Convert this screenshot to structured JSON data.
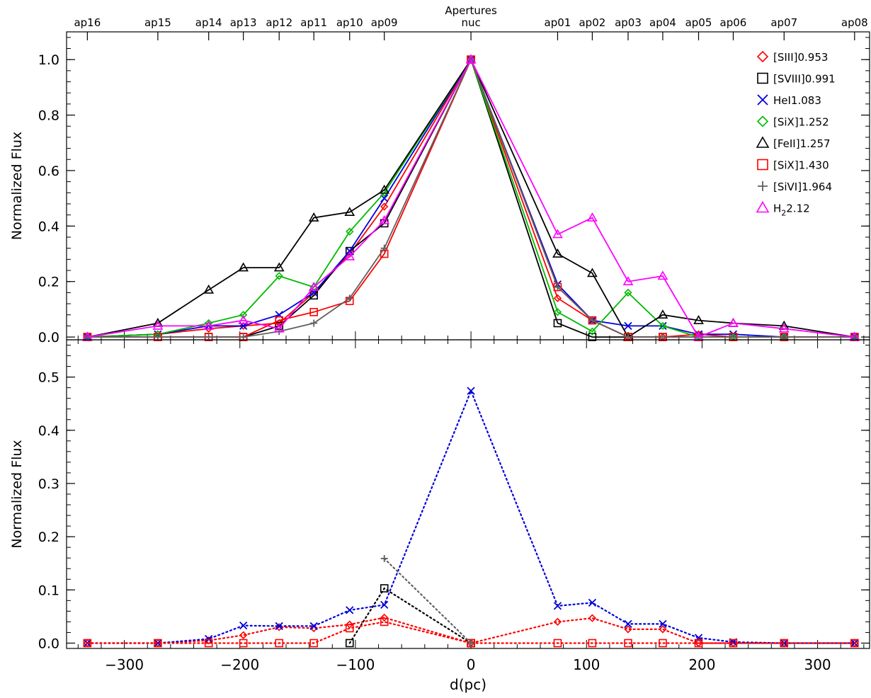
{
  "chart_data": [
    {
      "type": "line",
      "panel": "top",
      "top_axis": {
        "label_line1": "Apertures",
        "ticks": [
          {
            "x": -332,
            "label": "ap16"
          },
          {
            "x": -271,
            "label": "ap15"
          },
          {
            "x": -227,
            "label": "ap14"
          },
          {
            "x": -197,
            "label": "ap13"
          },
          {
            "x": -166,
            "label": "ap12"
          },
          {
            "x": -136,
            "label": "ap11"
          },
          {
            "x": -105,
            "label": "ap10"
          },
          {
            "x": -75,
            "label": "ap09"
          },
          {
            "x": 0,
            "label": "nuc"
          },
          {
            "x": 75,
            "label": "ap01"
          },
          {
            "x": 105,
            "label": "ap02"
          },
          {
            "x": 136,
            "label": "ap03"
          },
          {
            "x": 166,
            "label": "ap04"
          },
          {
            "x": 197,
            "label": "ap05"
          },
          {
            "x": 227,
            "label": "ap06"
          },
          {
            "x": 271,
            "label": "ap07"
          },
          {
            "x": 332,
            "label": "ap08"
          }
        ]
      },
      "ylabel": "Normalized Flux",
      "xlim": [
        -350,
        345
      ],
      "ylim": [
        -0.01,
        1.1
      ],
      "yticks": [
        0.0,
        0.2,
        0.4,
        0.6,
        0.8,
        1.0
      ],
      "ytick_labels": [
        "0.0",
        "0.2",
        "0.4",
        "0.6",
        "0.8",
        "1.0"
      ],
      "legend_position": "top-right",
      "x": [
        -332,
        -271,
        -227,
        -197,
        -166,
        -136,
        -105,
        -75,
        0,
        75,
        105,
        136,
        166,
        197,
        227,
        271,
        332
      ],
      "series": [
        {
          "name": "[SIII]0.953",
          "color": "#ff0000",
          "marker": "diamond-small",
          "values": [
            0.0,
            0.01,
            0.03,
            0.04,
            0.05,
            0.16,
            0.3,
            0.47,
            1.0,
            0.14,
            0.06,
            0.0,
            0.0,
            0.01,
            0.0,
            0.0,
            0.0
          ]
        },
        {
          "name": "[SVIII]0.991",
          "color": "#000000",
          "marker": "square",
          "values": [
            0.0,
            0.0,
            0.0,
            0.0,
            0.04,
            0.15,
            0.31,
            0.41,
            1.0,
            0.05,
            0.0,
            0.0,
            0.0,
            0.0,
            0.0,
            0.0,
            0.0
          ]
        },
        {
          "name": "HeI1.083",
          "color": "#0000dd",
          "marker": "x",
          "values": [
            0.0,
            0.01,
            0.04,
            0.04,
            0.08,
            0.16,
            0.31,
            0.5,
            1.0,
            0.19,
            0.06,
            0.04,
            0.04,
            0.01,
            0.01,
            0.0,
            0.0
          ]
        },
        {
          "name": "[SiX]1.252",
          "color": "#00bb00",
          "marker": "diamond-small",
          "values": [
            0.0,
            0.01,
            0.05,
            0.08,
            0.22,
            0.18,
            0.38,
            0.52,
            1.0,
            0.09,
            0.02,
            0.16,
            0.04,
            0.0,
            0.0,
            0.0,
            0.0
          ]
        },
        {
          "name": "[FeII]1.257",
          "color": "#000000",
          "marker": "triangle",
          "values": [
            0.0,
            0.05,
            0.17,
            0.25,
            0.25,
            0.43,
            0.45,
            0.53,
            1.0,
            0.3,
            0.23,
            0.0,
            0.08,
            0.06,
            0.05,
            0.04,
            0.0
          ]
        },
        {
          "name": "[SiX]1.430",
          "color": "#ff0000",
          "marker": "square",
          "values": [
            0.0,
            0.0,
            0.0,
            0.0,
            0.06,
            0.09,
            0.13,
            0.3,
            1.0,
            0.18,
            0.06,
            0.0,
            0.0,
            0.0,
            0.0,
            0.0,
            0.0
          ]
        },
        {
          "name": "[SiVI]1.964",
          "color": "#606060",
          "marker": "plus",
          "values": [
            0.0,
            0.0,
            0.0,
            0.0,
            0.02,
            0.05,
            0.14,
            0.32,
            1.0,
            0.18,
            0.06,
            0.0,
            0.0,
            0.0,
            0.0,
            0.0,
            0.0
          ]
        },
        {
          "name": "H2.12",
          "name_parts": [
            "H",
            "2",
            "2.12"
          ],
          "color": "#ff00ff",
          "marker": "triangle",
          "values": [
            0.0,
            0.04,
            0.04,
            0.06,
            0.03,
            0.18,
            0.29,
            0.42,
            1.0,
            0.37,
            0.43,
            0.2,
            0.22,
            0.0,
            0.05,
            0.03,
            0.0
          ]
        }
      ]
    },
    {
      "type": "line",
      "panel": "bottom",
      "xlabel": "d(pc)",
      "ylabel": "Normalized Flux",
      "xlim": [
        -350,
        345
      ],
      "ylim": [
        -0.01,
        0.57
      ],
      "xticks": [
        -300,
        -200,
        -100,
        0,
        100,
        200,
        300
      ],
      "xtick_labels": [
        "−300",
        "−200",
        "−100",
        "0",
        "100",
        "200",
        "300"
      ],
      "yticks": [
        0.0,
        0.1,
        0.2,
        0.3,
        0.4,
        0.5
      ],
      "ytick_labels": [
        "0.0",
        "0.1",
        "0.2",
        "0.3",
        "0.4",
        "0.5"
      ],
      "line_style": "dotted",
      "x": [
        -332,
        -271,
        -227,
        -197,
        -166,
        -136,
        -105,
        -75,
        0,
        75,
        105,
        136,
        166,
        197,
        227,
        271,
        332
      ],
      "series": [
        {
          "name": "[SIII]0.953",
          "color": "#ff0000",
          "marker": "diamond-small",
          "values": [
            0.0,
            0.0,
            0.005,
            0.015,
            0.03,
            0.028,
            0.035,
            0.048,
            0.0,
            0.04,
            0.047,
            0.026,
            0.026,
            0.0,
            0.0,
            0.0,
            0.0
          ]
        },
        {
          "name": "[SVIII]0.991",
          "color": "#000000",
          "marker": "square",
          "values": [
            null,
            null,
            null,
            null,
            null,
            null,
            0.0,
            0.103,
            0.0,
            null,
            null,
            null,
            null,
            null,
            null,
            null,
            null
          ]
        },
        {
          "name": "HeI1.083",
          "color": "#0000dd",
          "marker": "x",
          "values": [
            0.0,
            0.0,
            0.008,
            0.033,
            0.032,
            0.032,
            0.062,
            0.072,
            0.474,
            0.07,
            0.076,
            0.036,
            0.036,
            0.01,
            0.002,
            0.0,
            0.0
          ]
        },
        {
          "name": "[SiX]1.430",
          "color": "#ff0000",
          "marker": "square",
          "values": [
            0.0,
            0.0,
            0.0,
            0.0,
            0.0,
            0.0,
            0.028,
            0.04,
            0.0,
            0.0,
            0.0,
            0.0,
            0.0,
            0.0,
            0.0,
            0.0,
            0.0
          ]
        },
        {
          "name": "[SiVI]1.964",
          "color": "#606060",
          "marker": "plus",
          "values": [
            null,
            null,
            null,
            null,
            null,
            null,
            null,
            0.159,
            0.0,
            null,
            null,
            null,
            null,
            null,
            null,
            null,
            null
          ]
        }
      ]
    }
  ]
}
